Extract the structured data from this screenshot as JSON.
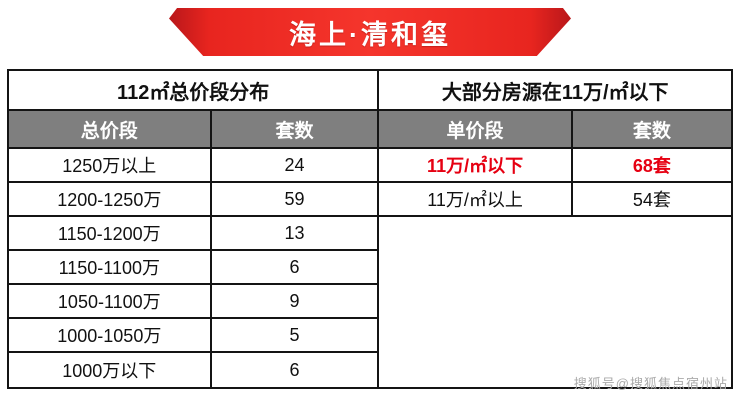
{
  "banner": {
    "title": "海上·清和玺"
  },
  "left_table": {
    "title": "112㎡总价段分布",
    "headers": [
      "总价段",
      "套数"
    ],
    "rows": [
      [
        "1250万以上",
        "24"
      ],
      [
        "1200-1250万",
        "59"
      ],
      [
        "1150-1200万",
        "13"
      ],
      [
        "1150-1100万",
        "6"
      ],
      [
        "1050-1100万",
        "9"
      ],
      [
        "1000-1050万",
        "5"
      ],
      [
        "1000万以下",
        "6"
      ]
    ]
  },
  "right_table": {
    "title": "大部分房源在11万/㎡以下",
    "headers": [
      "单价段",
      "套数"
    ],
    "rows": [
      {
        "label": "11万/㎡以下",
        "value": "68套",
        "highlight": true
      },
      {
        "label": "11万/㎡以上",
        "value": "54套",
        "highlight": false
      }
    ]
  },
  "watermark": "搜狐号@搜狐焦点宿州站",
  "colors": {
    "banner_red": "#e8251f",
    "header_gray": "#7f7f7f",
    "highlight_red": "#e60012"
  },
  "chart_data": [
    {
      "type": "table",
      "title": "112㎡总价段分布",
      "columns": [
        "总价段",
        "套数"
      ],
      "rows": [
        [
          "1250万以上",
          24
        ],
        [
          "1200-1250万",
          59
        ],
        [
          "1150-1200万",
          13
        ],
        [
          "1150-1100万",
          6
        ],
        [
          "1050-1100万",
          9
        ],
        [
          "1000-1050万",
          5
        ],
        [
          "1000万以下",
          6
        ]
      ]
    },
    {
      "type": "table",
      "title": "大部分房源在11万/㎡以下",
      "columns": [
        "单价段",
        "套数"
      ],
      "rows": [
        [
          "11万/㎡以下",
          "68套"
        ],
        [
          "11万/㎡以上",
          "54套"
        ]
      ]
    }
  ]
}
